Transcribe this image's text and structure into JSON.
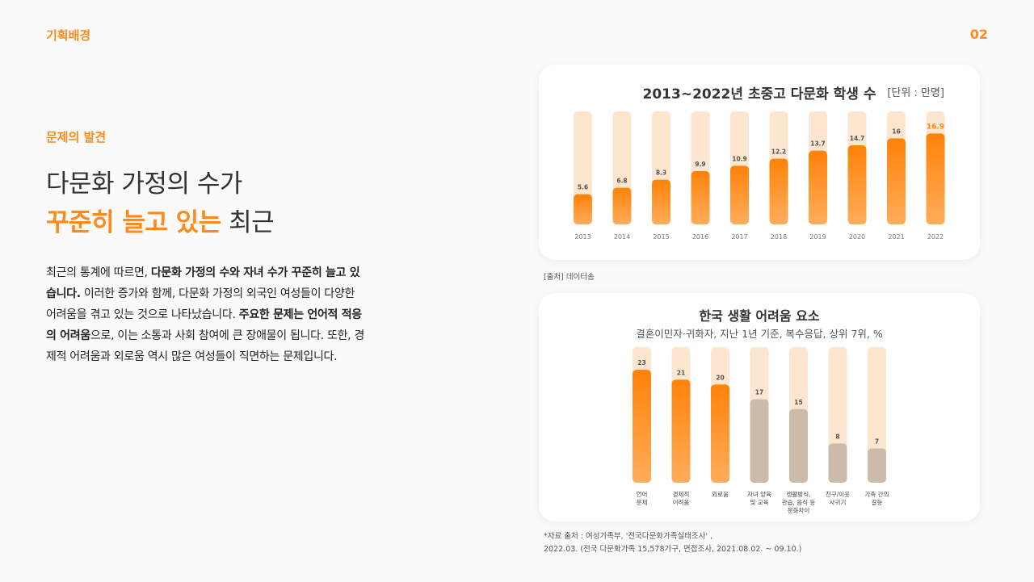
{
  "header": {
    "section": "기획배경",
    "page_number": "02"
  },
  "left": {
    "label": "문제의 발견",
    "headline_line1": "다문화 가정의 수가",
    "headline_accent": "꾸준히 늘고 있는",
    "headline_tail": " 최근",
    "body": [
      {
        "text": "최근의 통계에 따르면, ",
        "bold": false
      },
      {
        "text": "다문화 가정의 수와 자녀 수가 꾸준히 늘고 있습니다.",
        "bold": true
      },
      {
        "text": " 이러한 증가와 함께, 다문화 가정의 외국인 여성들이 다양한 어려움을 겪고 있는 것으로 나타났습니다. ",
        "bold": false
      },
      {
        "text": "주요한 문제는 언어적 적응의 어려움",
        "bold": true
      },
      {
        "text": "으로, 이는 소통과 사회 참여에 큰 장애물이 됩니다. 또한, 경제적 어려움과 외로움 역시 많은 여성들이 직면하는 문제입니다.",
        "bold": false
      }
    ]
  },
  "colors": {
    "accent": "#ff8a1a",
    "bar_track": "#fde6cf",
    "bar_fill": "#ff8a14",
    "bar_gray": "#cbbba8",
    "highlight_label": "#ff8a1a"
  },
  "chart1_source": "[출처] 데이터솜",
  "chart2_source_line1": "*자료 출처 : 여성가족부, '전국다문화가족실태조사' ,",
  "chart2_source_line2": "2022.03. (전국 다문화가족 15,578가구, 면접조사, 2021.08.02. ~ 09.10.)",
  "chart_data": [
    {
      "type": "bar",
      "title": "2013~2022년 초중고 다문화 학생 수",
      "unit": "[단위 : 만명]",
      "categories": [
        "2013",
        "2014",
        "2015",
        "2016",
        "2017",
        "2018",
        "2019",
        "2020",
        "2021",
        "2022"
      ],
      "values": [
        5.6,
        6.8,
        8.3,
        9.9,
        10.9,
        12.2,
        13.7,
        14.7,
        16,
        16.9
      ],
      "value_labels": [
        "5.6",
        "6.8",
        "8.3",
        "9.9",
        "10.9",
        "12.2",
        "13.7",
        "14.7",
        "16",
        "16.9"
      ],
      "ylim": [
        0,
        21
      ],
      "highlight_index": 9
    },
    {
      "type": "bar",
      "title": "한국 생활 어려움 요소",
      "subtitle": "결혼이민자·귀화자, 지난 1년 기준, 복수응답, 상위 7위, %",
      "categories": [
        [
          "언어",
          "문제"
        ],
        [
          "경제적",
          "어려움"
        ],
        [
          "외로움"
        ],
        [
          "자녀 양육",
          "및 교육"
        ],
        [
          "생활방식,",
          "관습, 음식 등",
          "문화차이"
        ],
        [
          "친구/이웃",
          "사귀기"
        ],
        [
          "가족 간의",
          "갈등"
        ]
      ],
      "values": [
        23,
        21,
        20,
        17,
        15,
        8,
        7
      ],
      "value_labels": [
        "23",
        "21",
        "20",
        "17",
        "15",
        "8",
        "7"
      ],
      "ylim": [
        0,
        25
      ],
      "highlight_count": 3
    }
  ]
}
